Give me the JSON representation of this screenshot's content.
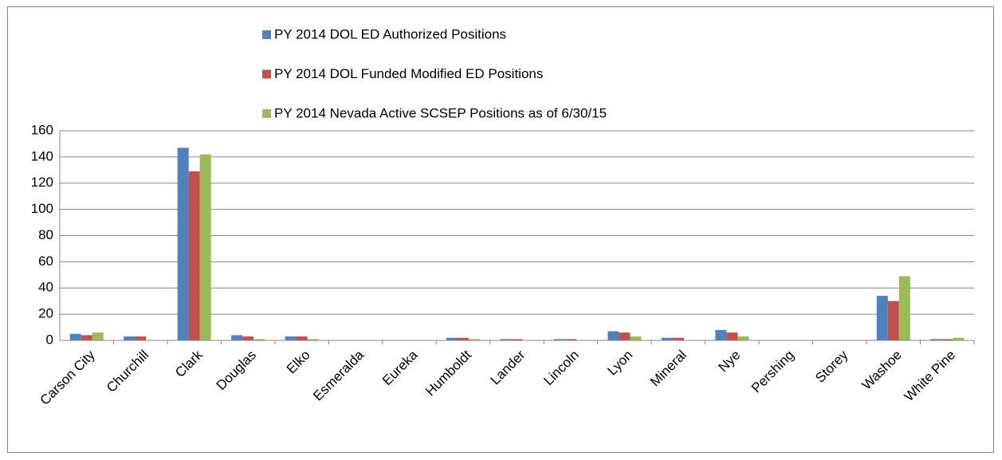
{
  "chart_data": {
    "type": "bar",
    "categories": [
      "Carson City",
      "Churchill",
      "Clark",
      "Douglas",
      "Elko",
      "Esmeralda",
      "Eureka",
      "Humboldt",
      "Lander",
      "Lincoln",
      "Lyon",
      "Mineral",
      "Nye",
      "Pershing",
      "Storey",
      "Washoe",
      "White Pine"
    ],
    "series": [
      {
        "name": "PY 2014 DOL ED Authorized Positions",
        "color": "#4f81bd",
        "values": [
          5,
          3,
          147,
          4,
          3,
          0,
          0,
          2,
          1,
          1,
          7,
          2,
          8,
          0,
          0,
          34,
          1
        ]
      },
      {
        "name": "PY 2014 DOL Funded Modified ED Positions",
        "color": "#c0504d",
        "values": [
          4,
          3,
          129,
          3,
          3,
          0,
          0,
          2,
          1,
          1,
          6,
          2,
          6,
          0,
          0,
          30,
          1
        ]
      },
      {
        "name": "PY 2014 Nevada Active SCSEP Positions as of 6/30/15",
        "color": "#9bbb59",
        "values": [
          6,
          0,
          142,
          1,
          1,
          0,
          0,
          1,
          0,
          0,
          3,
          0,
          3,
          0,
          0,
          49,
          2
        ]
      }
    ],
    "ylim": [
      0,
      160
    ],
    "yticks": [
      0,
      20,
      40,
      60,
      80,
      100,
      120,
      140,
      160
    ],
    "grid": true,
    "legend": "top"
  }
}
